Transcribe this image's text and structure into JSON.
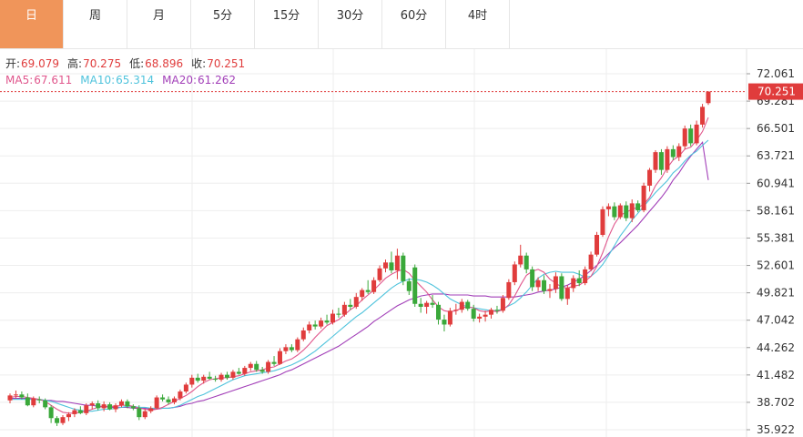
{
  "tabs": [
    {
      "label": "日",
      "active": true
    },
    {
      "label": "周",
      "active": false
    },
    {
      "label": "月",
      "active": false
    },
    {
      "label": "5分",
      "active": false
    },
    {
      "label": "15分",
      "active": false
    },
    {
      "label": "30分",
      "active": false
    },
    {
      "label": "60分",
      "active": false
    },
    {
      "label": "4时",
      "active": false
    }
  ],
  "colors": {
    "active_tab": "#f0955a",
    "up": "#e03c3c",
    "down": "#3aa83a",
    "ma5": "#e0568c",
    "ma10": "#4fc3dc",
    "ma20": "#a23fb8",
    "grid": "#eeeeee",
    "label_red": "#e03c3c"
  },
  "legend": {
    "open_label": "开:",
    "open_value": "69.079",
    "high_label": "高:",
    "high_value": "70.275",
    "low_label": "低:",
    "low_value": "68.896",
    "close_label": "收:",
    "close_value": "70.251",
    "ma5_label": "MA5:",
    "ma5_value": "67.611",
    "ma10_label": "MA10:",
    "ma10_value": "65.314",
    "ma20_label": "MA20:",
    "ma20_value": "61.262"
  },
  "chart_data": {
    "type": "candlestick",
    "y_ticks": [
      "72.061",
      "69.281",
      "66.501",
      "63.721",
      "60.941",
      "58.161",
      "55.381",
      "52.601",
      "49.821",
      "47.042",
      "44.262",
      "41.482",
      "38.702",
      "35.922"
    ],
    "ylim": [
      35.922,
      72.061
    ],
    "current_price_label": "70.251",
    "current_price": 70.251,
    "candles": [
      [
        38.9,
        39.6,
        38.6,
        39.4
      ],
      [
        39.4,
        39.9,
        39.1,
        39.5
      ],
      [
        39.5,
        39.8,
        39.0,
        39.2
      ],
      [
        39.2,
        39.6,
        38.3,
        38.4
      ],
      [
        38.4,
        39.3,
        38.2,
        39.1
      ],
      [
        39.0,
        39.3,
        38.6,
        38.9
      ],
      [
        38.9,
        39.1,
        38.0,
        38.2
      ],
      [
        38.2,
        38.4,
        36.6,
        37.1
      ],
      [
        37.1,
        37.3,
        36.3,
        36.6
      ],
      [
        36.6,
        37.4,
        36.4,
        37.2
      ],
      [
        37.2,
        37.7,
        36.8,
        37.5
      ],
      [
        37.5,
        38.1,
        37.2,
        37.9
      ],
      [
        37.9,
        38.3,
        37.5,
        37.6
      ],
      [
        37.6,
        38.6,
        37.4,
        38.4
      ],
      [
        38.4,
        38.8,
        38.0,
        38.6
      ],
      [
        38.6,
        38.9,
        37.9,
        38.1
      ],
      [
        38.1,
        38.8,
        37.8,
        38.5
      ],
      [
        38.5,
        38.7,
        37.9,
        38.0
      ],
      [
        38.0,
        38.6,
        37.7,
        38.4
      ],
      [
        38.4,
        39.0,
        38.2,
        38.8
      ],
      [
        38.8,
        39.0,
        38.1,
        38.3
      ],
      [
        38.3,
        38.5,
        37.9,
        38.1
      ],
      [
        38.1,
        38.4,
        36.9,
        37.2
      ],
      [
        37.2,
        38.0,
        37.0,
        37.8
      ],
      [
        37.8,
        38.3,
        37.6,
        38.1
      ],
      [
        38.1,
        39.4,
        38.0,
        39.2
      ],
      [
        39.2,
        39.5,
        38.8,
        39.0
      ],
      [
        39.0,
        39.3,
        38.5,
        38.7
      ],
      [
        38.7,
        39.3,
        38.5,
        39.1
      ],
      [
        39.1,
        40.0,
        38.9,
        39.8
      ],
      [
        39.8,
        40.7,
        39.6,
        40.5
      ],
      [
        40.5,
        41.5,
        40.2,
        41.2
      ],
      [
        41.2,
        41.6,
        40.7,
        40.9
      ],
      [
        40.9,
        41.5,
        40.6,
        41.3
      ],
      [
        41.3,
        41.8,
        41.0,
        41.1
      ],
      [
        41.1,
        41.4,
        40.8,
        41.0
      ],
      [
        41.0,
        41.7,
        40.8,
        41.5
      ],
      [
        41.5,
        41.8,
        41.0,
        41.2
      ],
      [
        41.2,
        42.0,
        41.0,
        41.8
      ],
      [
        41.8,
        42.2,
        41.5,
        41.6
      ],
      [
        41.6,
        42.4,
        41.4,
        42.2
      ],
      [
        42.2,
        42.8,
        41.9,
        42.6
      ],
      [
        42.6,
        42.9,
        41.8,
        42.0
      ],
      [
        42.0,
        42.3,
        41.6,
        41.8
      ],
      [
        41.8,
        43.0,
        41.6,
        42.8
      ],
      [
        42.8,
        43.4,
        42.4,
        42.6
      ],
      [
        42.6,
        44.2,
        42.5,
        43.9
      ],
      [
        43.9,
        44.6,
        43.6,
        44.3
      ],
      [
        44.3,
        44.6,
        43.8,
        44.0
      ],
      [
        44.0,
        45.3,
        43.8,
        45.1
      ],
      [
        45.1,
        46.3,
        44.9,
        46.0
      ],
      [
        46.0,
        46.9,
        45.7,
        46.6
      ],
      [
        46.6,
        47.0,
        46.1,
        46.4
      ],
      [
        46.4,
        47.3,
        46.2,
        47.0
      ],
      [
        47.0,
        47.6,
        46.6,
        46.8
      ],
      [
        46.8,
        48.1,
        46.6,
        47.7
      ],
      [
        47.7,
        48.3,
        47.3,
        47.6
      ],
      [
        47.6,
        48.9,
        47.4,
        48.6
      ],
      [
        48.6,
        49.2,
        48.1,
        48.4
      ],
      [
        48.4,
        49.8,
        48.2,
        49.4
      ],
      [
        49.4,
        50.3,
        49.0,
        50.1
      ],
      [
        50.1,
        51.1,
        49.7,
        49.9
      ],
      [
        49.9,
        51.4,
        49.7,
        51.1
      ],
      [
        51.1,
        52.6,
        50.9,
        52.3
      ],
      [
        52.3,
        53.2,
        51.9,
        52.9
      ],
      [
        52.9,
        54.0,
        51.8,
        52.1
      ],
      [
        52.1,
        54.3,
        51.2,
        53.6
      ],
      [
        53.6,
        53.9,
        50.6,
        51.0
      ],
      [
        51.0,
        51.3,
        49.6,
        50.0
      ],
      [
        52.4,
        52.7,
        48.4,
        48.7
      ],
      [
        48.7,
        49.3,
        47.8,
        48.4
      ],
      [
        48.4,
        49.0,
        47.7,
        48.8
      ],
      [
        48.8,
        49.6,
        48.3,
        48.6
      ],
      [
        48.6,
        48.9,
        46.6,
        47.1
      ],
      [
        47.1,
        47.6,
        45.9,
        46.6
      ],
      [
        46.6,
        48.3,
        46.4,
        48.0
      ],
      [
        48.0,
        48.7,
        47.6,
        48.1
      ],
      [
        48.1,
        49.2,
        47.8,
        48.9
      ],
      [
        48.9,
        49.1,
        48.0,
        48.2
      ],
      [
        48.2,
        48.6,
        46.9,
        47.2
      ],
      [
        47.2,
        47.7,
        46.8,
        47.4
      ],
      [
        47.4,
        48.0,
        46.9,
        47.6
      ],
      [
        47.6,
        48.3,
        47.2,
        48.1
      ],
      [
        48.1,
        48.5,
        47.7,
        48.0
      ],
      [
        48.0,
        49.6,
        47.8,
        49.3
      ],
      [
        49.3,
        51.2,
        49.1,
        50.9
      ],
      [
        50.9,
        53.0,
        50.6,
        52.7
      ],
      [
        52.7,
        54.7,
        52.4,
        53.6
      ],
      [
        53.6,
        53.9,
        51.8,
        52.2
      ],
      [
        52.2,
        52.5,
        50.0,
        50.4
      ],
      [
        50.4,
        51.4,
        50.0,
        51.1
      ],
      [
        51.1,
        51.6,
        49.7,
        50.0
      ],
      [
        50.0,
        50.7,
        49.3,
        50.2
      ],
      [
        50.2,
        51.9,
        49.8,
        51.5
      ],
      [
        51.5,
        51.8,
        49.0,
        49.2
      ],
      [
        49.2,
        50.6,
        48.6,
        50.3
      ],
      [
        50.3,
        51.6,
        49.9,
        51.3
      ],
      [
        51.3,
        52.1,
        50.5,
        50.8
      ],
      [
        50.8,
        52.5,
        50.6,
        52.2
      ],
      [
        52.2,
        54.0,
        52.0,
        53.7
      ],
      [
        53.7,
        56.0,
        53.5,
        55.7
      ],
      [
        55.7,
        58.6,
        55.5,
        58.3
      ],
      [
        58.3,
        58.9,
        57.6,
        58.6
      ],
      [
        58.6,
        59.0,
        57.2,
        57.5
      ],
      [
        57.5,
        58.9,
        57.3,
        58.7
      ],
      [
        58.7,
        59.1,
        57.1,
        57.4
      ],
      [
        57.4,
        59.3,
        57.0,
        58.9
      ],
      [
        58.9,
        59.2,
        58.0,
        58.2
      ],
      [
        58.2,
        61.0,
        58.0,
        60.7
      ],
      [
        60.7,
        62.5,
        60.1,
        62.3
      ],
      [
        62.3,
        64.3,
        62.0,
        64.1
      ],
      [
        64.1,
        64.4,
        61.8,
        62.3
      ],
      [
        62.3,
        64.7,
        62.0,
        64.4
      ],
      [
        64.4,
        64.8,
        63.3,
        63.6
      ],
      [
        63.6,
        65.0,
        63.2,
        64.7
      ],
      [
        64.7,
        66.8,
        64.4,
        66.5
      ],
      [
        66.5,
        66.9,
        64.7,
        65.0
      ],
      [
        65.0,
        67.3,
        64.8,
        66.9
      ],
      [
        66.9,
        69.0,
        66.6,
        68.7
      ],
      [
        69.079,
        70.275,
        68.896,
        70.251
      ]
    ],
    "ma5": [
      39.2,
      39.3,
      39.3,
      39.2,
      39.1,
      39.0,
      38.8,
      38.4,
      38.0,
      37.7,
      37.6,
      37.6,
      37.7,
      37.8,
      38.0,
      38.2,
      38.3,
      38.3,
      38.3,
      38.4,
      38.4,
      38.3,
      38.1,
      38.0,
      37.9,
      38.0,
      38.2,
      38.5,
      38.8,
      39.1,
      39.4,
      39.8,
      40.3,
      40.7,
      41.0,
      41.1,
      41.2,
      41.2,
      41.3,
      41.4,
      41.6,
      41.8,
      41.9,
      42.0,
      42.2,
      42.3,
      42.6,
      42.9,
      43.1,
      43.5,
      44.0,
      44.6,
      45.3,
      45.9,
      46.5,
      46.8,
      47.1,
      47.6,
      48.1,
      48.5,
      49.1,
      49.6,
      50.1,
      50.7,
      51.3,
      51.7,
      52.0,
      52.2,
      51.8,
      51.1,
      50.5,
      49.9,
      49.1,
      48.4,
      48.0,
      47.9,
      48.0,
      48.3,
      48.4,
      48.3,
      48.0,
      47.9,
      48.0,
      47.9,
      48.1,
      48.6,
      49.5,
      50.6,
      51.6,
      52.0,
      52.2,
      51.9,
      51.2,
      50.8,
      50.4,
      50.3,
      50.5,
      50.6,
      51.0,
      51.5,
      52.5,
      53.9,
      55.5,
      56.8,
      57.7,
      58.0,
      58.3,
      58.5,
      58.8,
      59.5,
      60.7,
      61.5,
      62.5,
      63.3,
      63.7,
      64.4,
      64.6,
      65.3,
      66.2,
      67.611
    ],
    "ma10": [
      39.0,
      39.0,
      39.0,
      39.0,
      39.0,
      39.0,
      38.9,
      38.8,
      38.6,
      38.4,
      38.2,
      38.0,
      37.9,
      37.8,
      37.8,
      37.9,
      38.0,
      38.0,
      38.1,
      38.2,
      38.3,
      38.3,
      38.2,
      38.2,
      38.1,
      38.1,
      38.1,
      38.1,
      38.2,
      38.4,
      38.7,
      39.0,
      39.3,
      39.5,
      39.8,
      40.1,
      40.4,
      40.7,
      41.0,
      41.2,
      41.4,
      41.5,
      41.6,
      41.7,
      41.8,
      41.9,
      42.1,
      42.3,
      42.5,
      42.8,
      43.1,
      43.5,
      43.9,
      44.4,
      44.9,
      45.4,
      45.9,
      46.4,
      46.9,
      47.4,
      47.8,
      48.3,
      48.8,
      49.3,
      49.8,
      50.3,
      50.7,
      51.0,
      51.2,
      51.2,
      51.1,
      50.9,
      50.6,
      50.2,
      49.7,
      49.2,
      48.9,
      48.6,
      48.4,
      48.3,
      48.2,
      48.1,
      48.0,
      48.0,
      48.2,
      48.5,
      48.8,
      49.3,
      49.9,
      50.6,
      51.3,
      51.7,
      51.9,
      52.0,
      51.9,
      51.9,
      51.9,
      51.7,
      51.4,
      51.5,
      52.0,
      52.7,
      53.6,
      54.6,
      55.6,
      56.4,
      57.2,
      57.9,
      58.6,
      59.3,
      60.0,
      60.6,
      61.2,
      62.0,
      62.5,
      63.2,
      63.8,
      64.2,
      64.8,
      65.314
    ],
    "ma20": [
      39.1,
      39.1,
      39.1,
      39.1,
      39.0,
      39.0,
      38.9,
      38.9,
      38.8,
      38.8,
      38.7,
      38.6,
      38.5,
      38.4,
      38.4,
      38.3,
      38.3,
      38.2,
      38.2,
      38.2,
      38.2,
      38.1,
      38.1,
      38.1,
      38.0,
      38.0,
      38.1,
      38.1,
      38.2,
      38.3,
      38.5,
      38.6,
      38.8,
      38.9,
      39.1,
      39.3,
      39.5,
      39.7,
      39.9,
      40.1,
      40.3,
      40.5,
      40.7,
      40.9,
      41.1,
      41.3,
      41.5,
      41.8,
      42.0,
      42.3,
      42.6,
      42.9,
      43.2,
      43.5,
      43.8,
      44.1,
      44.4,
      44.8,
      45.2,
      45.6,
      46.0,
      46.4,
      46.9,
      47.3,
      47.7,
      48.1,
      48.5,
      48.8,
      49.1,
      49.3,
      49.5,
      49.6,
      49.7,
      49.7,
      49.7,
      49.6,
      49.6,
      49.6,
      49.6,
      49.5,
      49.5,
      49.5,
      49.4,
      49.4,
      49.4,
      49.4,
      49.4,
      49.5,
      49.6,
      49.7,
      49.9,
      50.0,
      50.1,
      50.2,
      50.4,
      50.6,
      50.9,
      51.2,
      51.6,
      52.1,
      52.6,
      53.2,
      53.8,
      54.4,
      54.9,
      55.5,
      56.1,
      56.7,
      57.4,
      58.1,
      58.8,
      59.5,
      60.3,
      61.261,
      62.0,
      62.9,
      63.7,
      64.4,
      65.1,
      61.262
    ]
  }
}
